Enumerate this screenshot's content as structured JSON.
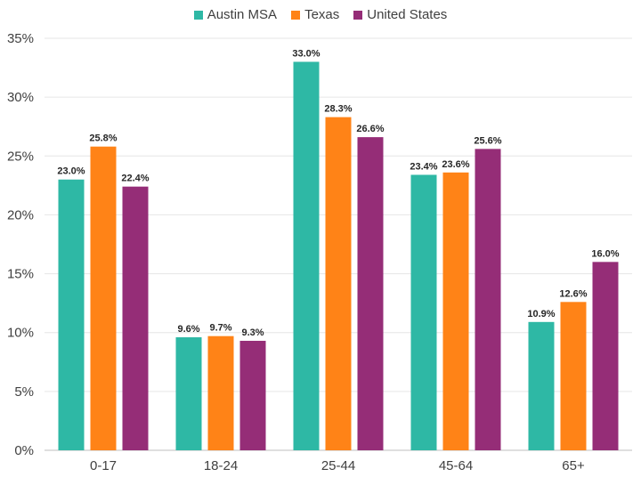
{
  "chart_data": {
    "type": "bar",
    "categories": [
      "0-17",
      "18-24",
      "25-44",
      "45-64",
      "65+"
    ],
    "series": [
      {
        "name": "Austin MSA",
        "color": "#2EB8A5",
        "values": [
          23.0,
          9.6,
          33.0,
          23.4,
          10.9
        ],
        "labels": [
          "23.0%",
          "9.6%",
          "33.0%",
          "23.4%",
          "10.9%"
        ]
      },
      {
        "name": "Texas",
        "color": "#FF8317",
        "values": [
          25.8,
          9.7,
          28.3,
          23.6,
          12.6
        ],
        "labels": [
          "25.8%",
          "9.7%",
          "28.3%",
          "23.6%",
          "12.6%"
        ]
      },
      {
        "name": "United States",
        "color": "#952D77",
        "values": [
          22.4,
          9.3,
          26.6,
          25.6,
          16.0
        ],
        "labels": [
          "22.4%",
          "9.3%",
          "26.6%",
          "25.6%",
          "16.0%"
        ]
      }
    ],
    "ylim": [
      0,
      35
    ],
    "yticks": [
      0,
      5,
      10,
      15,
      20,
      25,
      30,
      35
    ],
    "ytick_labels": [
      "0%",
      "5%",
      "10%",
      "15%",
      "20%",
      "25%",
      "30%",
      "35%"
    ],
    "grid": true,
    "legend_position": "top-center",
    "xlabel": "",
    "ylabel": "",
    "title": ""
  }
}
